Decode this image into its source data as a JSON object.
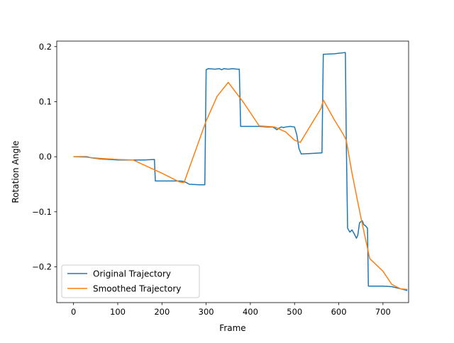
{
  "chart_data": {
    "type": "line",
    "title": "",
    "xlabel": "Frame",
    "ylabel": "Rotation Angle",
    "xlim": [
      -38,
      758
    ],
    "ylim": [
      -0.265,
      0.21
    ],
    "xticks": [
      0,
      100,
      200,
      300,
      400,
      500,
      600,
      700
    ],
    "yticks": [
      -0.2,
      -0.1,
      0.0,
      0.1,
      0.2
    ],
    "xtick_labels": [
      "0",
      "100",
      "200",
      "300",
      "400",
      "500",
      "600",
      "700"
    ],
    "ytick_labels": [
      "−0.2",
      "−0.1",
      "0.0",
      "0.1",
      "0.2"
    ],
    "grid": false,
    "legend_position": "bottom-left",
    "series": [
      {
        "name": "Original Trajectory",
        "color": "#1f77b4",
        "x": [
          0,
          10,
          20,
          30,
          35,
          40,
          60,
          80,
          100,
          130,
          160,
          183,
          185,
          200,
          220,
          240,
          250,
          262,
          285,
          297,
          300,
          305,
          320,
          330,
          335,
          340,
          350,
          360,
          370,
          375,
          378,
          400,
          420,
          440,
          450,
          455,
          460,
          465,
          470,
          475,
          480,
          490,
          500,
          505,
          510,
          515,
          540,
          560,
          562,
          565,
          590,
          612,
          615,
          617,
          620,
          625,
          630,
          635,
          640,
          643,
          647,
          650,
          653,
          657,
          660,
          665,
          667,
          670,
          672,
          700,
          720,
          740,
          755
        ],
        "y": [
          0.0,
          0.0,
          0.0,
          0.0,
          -0.001,
          -0.002,
          -0.004,
          -0.005,
          -0.006,
          -0.006,
          -0.006,
          -0.005,
          -0.044,
          -0.044,
          -0.044,
          -0.044,
          -0.045,
          -0.05,
          -0.051,
          -0.051,
          0.158,
          0.16,
          0.159,
          0.16,
          0.158,
          0.16,
          0.159,
          0.16,
          0.159,
          0.159,
          0.055,
          0.055,
          0.055,
          0.054,
          0.054,
          0.052,
          0.049,
          0.052,
          0.054,
          0.053,
          0.054,
          0.055,
          0.054,
          0.04,
          0.015,
          0.005,
          0.006,
          0.007,
          0.007,
          0.186,
          0.187,
          0.189,
          0.189,
          0.03,
          -0.13,
          -0.137,
          -0.133,
          -0.14,
          -0.148,
          -0.143,
          -0.12,
          -0.118,
          -0.116,
          -0.124,
          -0.125,
          -0.13,
          -0.235,
          -0.235,
          -0.235,
          -0.235,
          -0.236,
          -0.24,
          -0.243
        ]
      },
      {
        "name": "Smoothed Trajectory",
        "color": "#ff7f0e",
        "x": [
          0,
          30,
          60,
          100,
          135,
          200,
          240,
          250,
          300,
          325,
          350,
          385,
          420,
          455,
          480,
          500,
          513,
          560,
          565,
          590,
          610,
          617,
          630,
          650,
          670,
          700,
          720,
          740,
          755
        ],
        "y": [
          0.0,
          -0.001,
          -0.003,
          -0.005,
          -0.006,
          -0.03,
          -0.046,
          -0.047,
          0.065,
          0.11,
          0.135,
          0.098,
          0.056,
          0.054,
          0.045,
          0.03,
          0.026,
          0.088,
          0.103,
          0.067,
          0.041,
          0.03,
          -0.03,
          -0.11,
          -0.185,
          -0.208,
          -0.232,
          -0.24,
          -0.241
        ]
      }
    ]
  }
}
